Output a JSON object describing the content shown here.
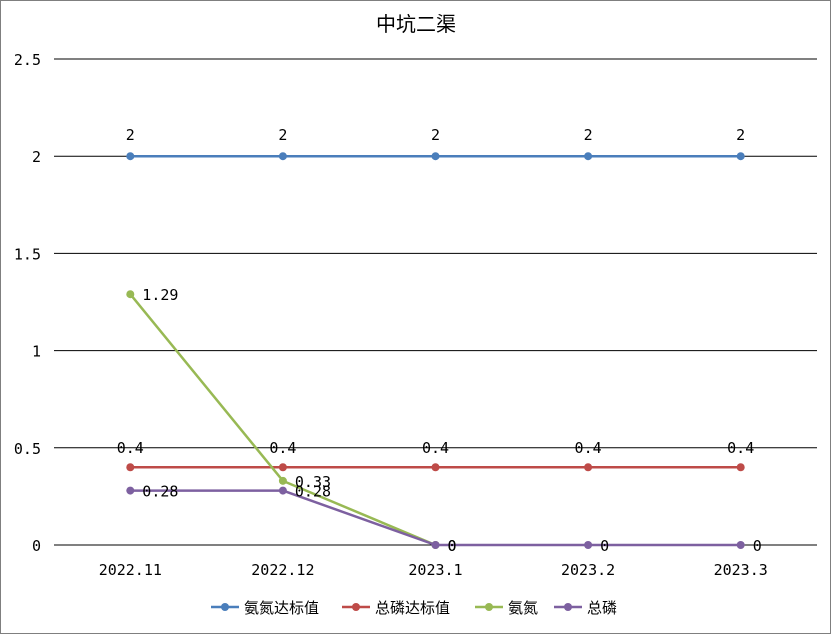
{
  "chart_data": {
    "type": "line",
    "title": "中坑二渠",
    "categories": [
      "2022.11",
      "2022.12",
      "2023.1",
      "2023.2",
      "2023.3"
    ],
    "ylim": [
      0,
      2.5
    ],
    "yticks": [
      "0",
      "0.5",
      "1",
      "1.5",
      "2",
      "2.5"
    ],
    "grid": true,
    "legend": "bottom",
    "series": [
      {
        "name": "氨氮达标值",
        "color": "#4a7ebb",
        "values": [
          2,
          2,
          2,
          2,
          2
        ],
        "labels": [
          "2",
          "2",
          "2",
          "2",
          "2"
        ]
      },
      {
        "name": "总磷达标值",
        "color": "#be4b48",
        "values": [
          0.4,
          0.4,
          0.4,
          0.4,
          0.4
        ],
        "labels": [
          "0.4",
          "0.4",
          "0.4",
          "0.4",
          "0.4"
        ]
      },
      {
        "name": "氨氮",
        "color": "#98b954",
        "values": [
          1.29,
          0.33,
          0,
          null,
          null
        ],
        "labels": [
          "1.29",
          "0.33",
          "0",
          "",
          ""
        ]
      },
      {
        "name": "总磷",
        "color": "#7d60a0",
        "values": [
          0.28,
          0.28,
          0,
          0,
          0
        ],
        "labels": [
          "0.28",
          "0.28",
          "0",
          "0",
          "0"
        ]
      }
    ]
  }
}
